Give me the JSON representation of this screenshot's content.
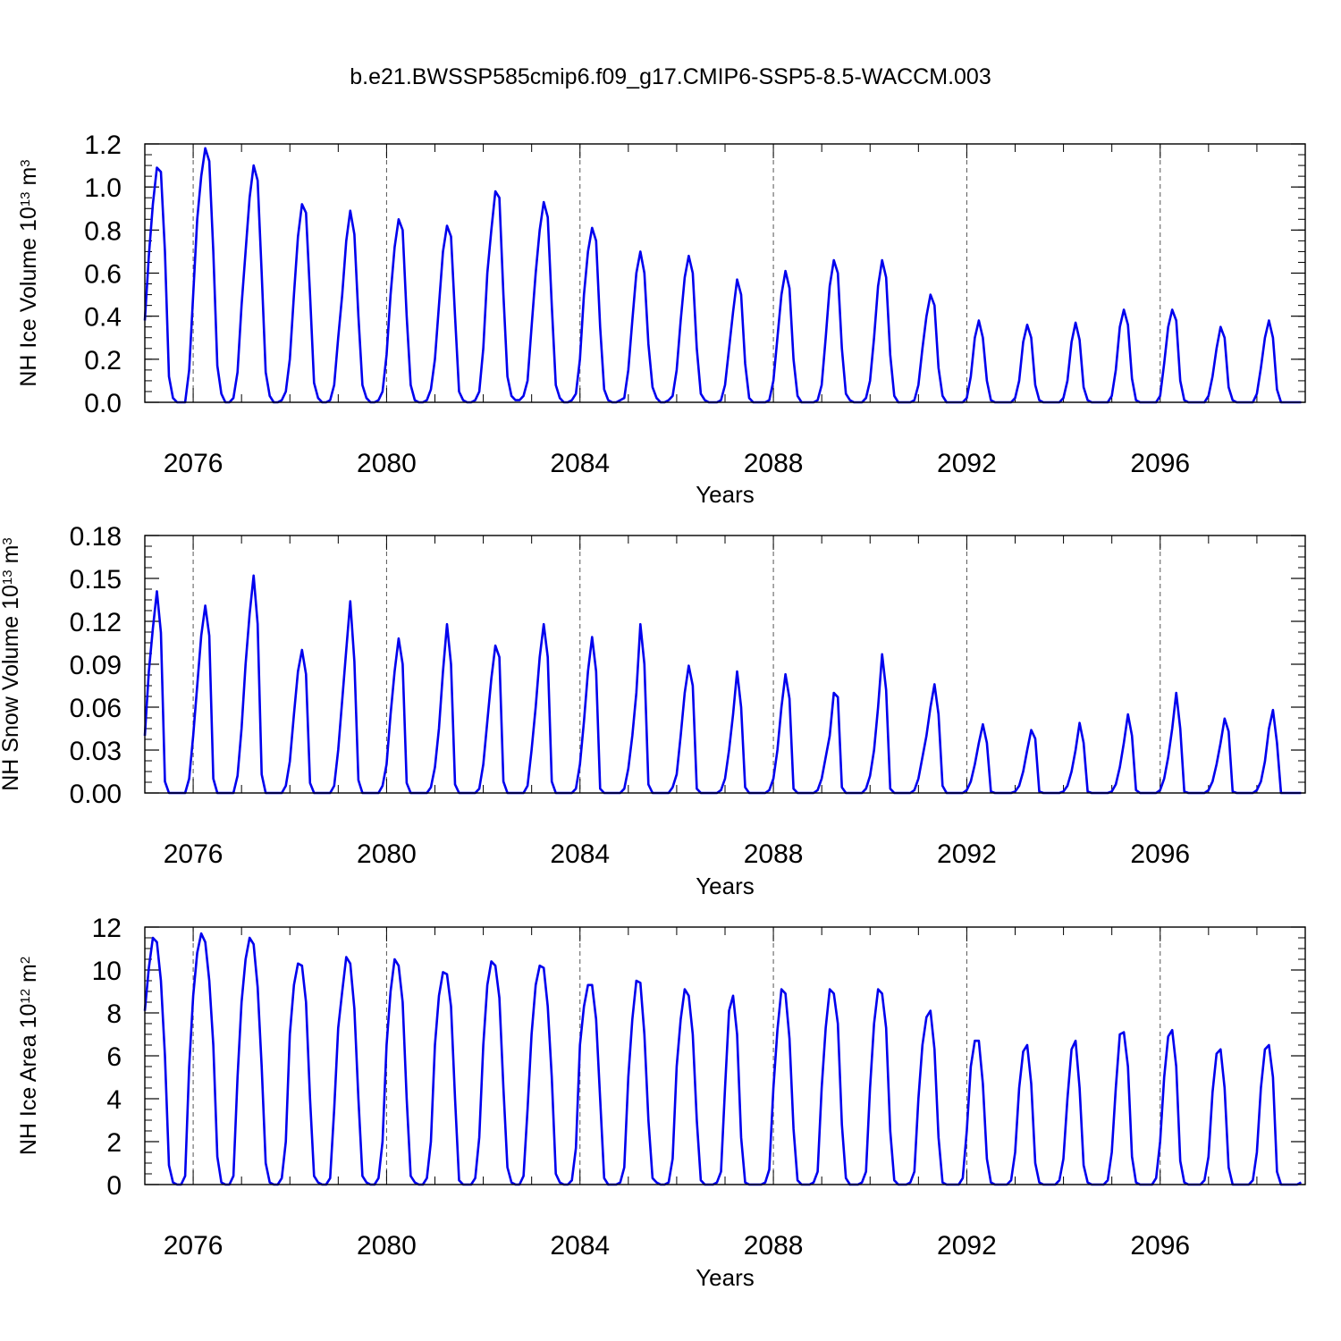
{
  "title": "b.e21.BWSSP585cmip6.f09_g17.CMIP6-SSP5-8.5-WACCM.003",
  "chart_data": [
    {
      "type": "line",
      "ylabel": {
        "main": "NH Ice Volume 10",
        "exp": "13",
        "unit": " m",
        "unit_exp": "3"
      },
      "xlabel": "Years",
      "xlim": [
        2075.0,
        2099.0
      ],
      "ylim": [
        0.0,
        1.2
      ],
      "yticks": [
        0.0,
        0.2,
        0.4,
        0.6,
        0.8,
        1.0,
        1.2
      ],
      "ytick_labels": [
        "0.0",
        "0.2",
        "0.4",
        "0.6",
        "0.8",
        "1.0",
        "1.2"
      ],
      "ygrid_minor": 0.05,
      "xticks": [
        2076,
        2080,
        2084,
        2088,
        2092,
        2096
      ],
      "xtick_labels": [
        "2076",
        "2080",
        "2084",
        "2088",
        "2092",
        "2096"
      ],
      "vgrid_dashed": [
        2076,
        2080,
        2084,
        2088,
        2092,
        2096
      ],
      "series_color": "#0000ee",
      "series": [
        {
          "name": "NH Ice Volume",
          "start": 2075.0,
          "step": 0.08333,
          "values": [
            0.38,
            0.68,
            0.92,
            1.09,
            1.07,
            0.7,
            0.12,
            0.02,
            0.0,
            0.0,
            0.0,
            0.15,
            0.5,
            0.85,
            1.05,
            1.18,
            1.12,
            0.7,
            0.17,
            0.04,
            0.0,
            0.0,
            0.02,
            0.14,
            0.45,
            0.7,
            0.95,
            1.1,
            1.03,
            0.6,
            0.14,
            0.03,
            0.0,
            0.0,
            0.01,
            0.05,
            0.2,
            0.5,
            0.77,
            0.92,
            0.88,
            0.5,
            0.09,
            0.02,
            0.0,
            0.0,
            0.01,
            0.08,
            0.3,
            0.5,
            0.75,
            0.89,
            0.78,
            0.4,
            0.08,
            0.02,
            0.0,
            0.0,
            0.01,
            0.05,
            0.22,
            0.5,
            0.72,
            0.85,
            0.8,
            0.4,
            0.08,
            0.01,
            0.0,
            0.0,
            0.01,
            0.06,
            0.2,
            0.45,
            0.7,
            0.82,
            0.77,
            0.4,
            0.05,
            0.01,
            0.0,
            0.0,
            0.01,
            0.05,
            0.25,
            0.6,
            0.8,
            0.98,
            0.95,
            0.5,
            0.12,
            0.03,
            0.01,
            0.01,
            0.03,
            0.1,
            0.35,
            0.6,
            0.8,
            0.93,
            0.86,
            0.45,
            0.08,
            0.02,
            0.0,
            0.0,
            0.01,
            0.04,
            0.2,
            0.5,
            0.7,
            0.81,
            0.75,
            0.35,
            0.06,
            0.01,
            0.0,
            0.0,
            0.01,
            0.02,
            0.15,
            0.38,
            0.6,
            0.7,
            0.6,
            0.27,
            0.07,
            0.02,
            0.0,
            0.0,
            0.01,
            0.03,
            0.15,
            0.38,
            0.58,
            0.68,
            0.6,
            0.25,
            0.04,
            0.01,
            0.0,
            0.0,
            0.0,
            0.01,
            0.08,
            0.25,
            0.42,
            0.57,
            0.5,
            0.18,
            0.02,
            0.0,
            0.0,
            0.0,
            0.0,
            0.01,
            0.1,
            0.3,
            0.5,
            0.61,
            0.53,
            0.2,
            0.03,
            0.0,
            0.0,
            0.0,
            0.0,
            0.01,
            0.08,
            0.3,
            0.54,
            0.66,
            0.6,
            0.25,
            0.04,
            0.01,
            0.0,
            0.0,
            0.0,
            0.02,
            0.1,
            0.3,
            0.54,
            0.66,
            0.58,
            0.22,
            0.03,
            0.0,
            0.0,
            0.0,
            0.0,
            0.01,
            0.08,
            0.25,
            0.4,
            0.5,
            0.45,
            0.16,
            0.03,
            0.0,
            0.0,
            0.0,
            0.0,
            0.0,
            0.02,
            0.12,
            0.3,
            0.38,
            0.3,
            0.1,
            0.01,
            0.0,
            0.0,
            0.0,
            0.0,
            0.0,
            0.02,
            0.1,
            0.28,
            0.36,
            0.3,
            0.08,
            0.01,
            0.0,
            0.0,
            0.0,
            0.0,
            0.0,
            0.02,
            0.1,
            0.28,
            0.37,
            0.29,
            0.07,
            0.01,
            0.0,
            0.0,
            0.0,
            0.0,
            0.0,
            0.03,
            0.15,
            0.35,
            0.43,
            0.36,
            0.11,
            0.01,
            0.0,
            0.0,
            0.0,
            0.0,
            0.0,
            0.03,
            0.18,
            0.35,
            0.43,
            0.38,
            0.1,
            0.01,
            0.0,
            0.0,
            0.0,
            0.0,
            0.0,
            0.03,
            0.12,
            0.25,
            0.35,
            0.3,
            0.07,
            0.01,
            0.0,
            0.0,
            0.0,
            0.0,
            0.0,
            0.04,
            0.16,
            0.3,
            0.38,
            0.3,
            0.06,
            0.0,
            0.0,
            0.0,
            0.0,
            0.0,
            0.0
          ]
        }
      ]
    },
    {
      "type": "line",
      "ylabel": {
        "main": "NH Snow Volume 10",
        "exp": "13",
        "unit": " m",
        "unit_exp": "3"
      },
      "xlabel": "Years",
      "xlim": [
        2075.0,
        2099.0
      ],
      "ylim": [
        0.0,
        0.18
      ],
      "yticks": [
        0.0,
        0.03,
        0.06,
        0.09,
        0.12,
        0.15,
        0.18
      ],
      "ytick_labels": [
        "0.00",
        "0.03",
        "0.06",
        "0.09",
        "0.12",
        "0.15",
        "0.18"
      ],
      "ygrid_minor": 0.0075,
      "xticks": [
        2076,
        2080,
        2084,
        2088,
        2092,
        2096
      ],
      "xtick_labels": [
        "2076",
        "2080",
        "2084",
        "2088",
        "2092",
        "2096"
      ],
      "vgrid_dashed": [
        2076,
        2080,
        2084,
        2088,
        2092,
        2096
      ],
      "series_color": "#0000ee",
      "series": [
        {
          "name": "NH Snow Volume",
          "start": 2075.0,
          "step": 0.08333,
          "values": [
            0.04,
            0.085,
            0.115,
            0.141,
            0.112,
            0.008,
            0.0,
            0.0,
            0.0,
            0.0,
            0.0,
            0.01,
            0.04,
            0.075,
            0.11,
            0.131,
            0.11,
            0.01,
            0.0,
            0.0,
            0.0,
            0.0,
            0.0,
            0.012,
            0.045,
            0.09,
            0.125,
            0.152,
            0.118,
            0.013,
            0.0,
            0.0,
            0.0,
            0.0,
            0.0,
            0.005,
            0.022,
            0.055,
            0.085,
            0.1,
            0.083,
            0.007,
            0.0,
            0.0,
            0.0,
            0.0,
            0.0,
            0.005,
            0.03,
            0.065,
            0.1,
            0.134,
            0.092,
            0.009,
            0.0,
            0.0,
            0.0,
            0.0,
            0.0,
            0.005,
            0.02,
            0.055,
            0.085,
            0.108,
            0.09,
            0.007,
            0.0,
            0.0,
            0.0,
            0.0,
            0.0,
            0.004,
            0.018,
            0.045,
            0.085,
            0.118,
            0.09,
            0.006,
            0.0,
            0.0,
            0.0,
            0.0,
            0.0,
            0.003,
            0.02,
            0.05,
            0.08,
            0.103,
            0.095,
            0.008,
            0.0,
            0.0,
            0.0,
            0.0,
            0.0,
            0.005,
            0.03,
            0.06,
            0.095,
            0.118,
            0.095,
            0.008,
            0.0,
            0.0,
            0.0,
            0.0,
            0.0,
            0.003,
            0.02,
            0.05,
            0.085,
            0.109,
            0.085,
            0.003,
            0.0,
            0.0,
            0.0,
            0.0,
            0.0,
            0.003,
            0.017,
            0.04,
            0.07,
            0.118,
            0.09,
            0.006,
            0.0,
            0.0,
            0.0,
            0.0,
            0.0,
            0.004,
            0.013,
            0.04,
            0.07,
            0.089,
            0.075,
            0.003,
            0.0,
            0.0,
            0.0,
            0.0,
            0.0,
            0.002,
            0.01,
            0.03,
            0.055,
            0.085,
            0.06,
            0.004,
            0.0,
            0.0,
            0.0,
            0.0,
            0.0,
            0.002,
            0.01,
            0.03,
            0.06,
            0.083,
            0.066,
            0.003,
            0.0,
            0.0,
            0.0,
            0.0,
            0.0,
            0.002,
            0.01,
            0.025,
            0.04,
            0.07,
            0.067,
            0.004,
            0.0,
            0.0,
            0.0,
            0.0,
            0.0,
            0.003,
            0.012,
            0.03,
            0.06,
            0.097,
            0.072,
            0.003,
            0.0,
            0.0,
            0.0,
            0.0,
            0.0,
            0.002,
            0.01,
            0.025,
            0.04,
            0.06,
            0.076,
            0.055,
            0.005,
            0.0,
            0.0,
            0.0,
            0.0,
            0.0,
            0.002,
            0.008,
            0.02,
            0.035,
            0.048,
            0.035,
            0.001,
            0.0,
            0.0,
            0.0,
            0.0,
            0.0,
            0.001,
            0.005,
            0.015,
            0.03,
            0.044,
            0.038,
            0.001,
            0.0,
            0.0,
            0.0,
            0.0,
            0.0,
            0.001,
            0.005,
            0.015,
            0.03,
            0.049,
            0.035,
            0.001,
            0.0,
            0.0,
            0.0,
            0.0,
            0.0,
            0.001,
            0.006,
            0.018,
            0.035,
            0.055,
            0.04,
            0.002,
            0.0,
            0.0,
            0.0,
            0.0,
            0.0,
            0.002,
            0.01,
            0.025,
            0.045,
            0.07,
            0.045,
            0.001,
            0.0,
            0.0,
            0.0,
            0.0,
            0.0,
            0.002,
            0.008,
            0.02,
            0.035,
            0.052,
            0.043,
            0.001,
            0.0,
            0.0,
            0.0,
            0.0,
            0.0,
            0.002,
            0.008,
            0.022,
            0.045,
            0.058,
            0.035,
            0.0,
            0.0,
            0.0,
            0.0,
            0.0,
            0.0
          ]
        }
      ]
    },
    {
      "type": "line",
      "ylabel": {
        "main": "NH Ice Area 10",
        "exp": "12",
        "unit": " m",
        "unit_exp": "2"
      },
      "xlabel": "Years",
      "xlim": [
        2075.0,
        2099.0
      ],
      "ylim": [
        0,
        12
      ],
      "yticks": [
        0,
        2,
        4,
        6,
        8,
        10,
        12
      ],
      "ytick_labels": [
        "0",
        "2",
        "4",
        "6",
        "8",
        "10",
        "12"
      ],
      "ygrid_minor": 0.5,
      "xticks": [
        2076,
        2080,
        2084,
        2088,
        2092,
        2096
      ],
      "xtick_labels": [
        "2076",
        "2080",
        "2084",
        "2088",
        "2092",
        "2096"
      ],
      "vgrid_dashed": [
        2076,
        2080,
        2084,
        2088,
        2092,
        2096
      ],
      "series_color": "#0000ee",
      "series": [
        {
          "name": "NH Ice Area",
          "start": 2075.0,
          "step": 0.08333,
          "values": [
            8.1,
            10.1,
            11.5,
            11.3,
            9.5,
            6.0,
            0.9,
            0.1,
            0.0,
            0.0,
            0.4,
            5.5,
            8.8,
            10.8,
            11.7,
            11.3,
            9.5,
            6.5,
            1.3,
            0.1,
            0.0,
            0.0,
            0.4,
            5.0,
            8.5,
            10.5,
            11.5,
            11.2,
            9.2,
            5.5,
            1.0,
            0.1,
            0.0,
            0.0,
            0.3,
            2.0,
            7.0,
            9.3,
            10.3,
            10.2,
            8.5,
            4.0,
            0.4,
            0.1,
            0.0,
            0.0,
            0.3,
            3.5,
            7.3,
            9.0,
            10.6,
            10.3,
            8.2,
            4.0,
            0.4,
            0.1,
            0.0,
            0.0,
            0.3,
            2.0,
            6.5,
            9.0,
            10.5,
            10.2,
            8.5,
            4.0,
            0.4,
            0.1,
            0.0,
            0.0,
            0.3,
            2.0,
            6.5,
            8.8,
            9.9,
            9.8,
            8.3,
            4.0,
            0.2,
            0.0,
            0.0,
            0.0,
            0.3,
            2.2,
            6.5,
            9.3,
            10.4,
            10.2,
            8.7,
            4.5,
            0.8,
            0.1,
            0.0,
            0.0,
            0.4,
            3.5,
            7.0,
            9.3,
            10.2,
            10.1,
            8.3,
            5.0,
            0.5,
            0.1,
            0.0,
            0.0,
            0.2,
            1.7,
            6.5,
            8.3,
            9.3,
            9.3,
            7.7,
            4.0,
            0.3,
            0.0,
            0.0,
            0.0,
            0.1,
            0.8,
            5.0,
            7.7,
            9.5,
            9.4,
            7.0,
            3.0,
            0.3,
            0.1,
            0.0,
            0.0,
            0.1,
            1.2,
            5.5,
            7.7,
            9.1,
            8.8,
            7.0,
            3.0,
            0.2,
            0.0,
            0.0,
            0.0,
            0.1,
            0.6,
            4.5,
            8.1,
            8.8,
            7.0,
            2.2,
            0.1,
            0.0,
            0.0,
            0.0,
            0.0,
            0.1,
            0.7,
            4.5,
            7.2,
            9.1,
            8.9,
            6.8,
            2.6,
            0.2,
            0.0,
            0.0,
            0.0,
            0.1,
            0.6,
            4.5,
            7.3,
            9.1,
            8.9,
            7.5,
            2.8,
            0.3,
            0.0,
            0.0,
            0.0,
            0.1,
            0.6,
            4.5,
            7.5,
            9.1,
            8.9,
            7.3,
            2.5,
            0.2,
            0.0,
            0.0,
            0.0,
            0.1,
            0.6,
            4.0,
            6.5,
            7.8,
            8.1,
            6.3,
            2.2,
            0.1,
            0.0,
            0.0,
            0.0,
            0.0,
            0.3,
            2.5,
            5.5,
            6.7,
            6.7,
            4.7,
            1.2,
            0.1,
            0.0,
            0.0,
            0.0,
            0.0,
            0.2,
            1.5,
            4.5,
            6.2,
            6.5,
            4.7,
            1.0,
            0.1,
            0.0,
            0.0,
            0.0,
            0.0,
            0.2,
            1.2,
            4.0,
            6.3,
            6.7,
            4.5,
            0.9,
            0.1,
            0.0,
            0.0,
            0.0,
            0.0,
            0.2,
            1.5,
            4.5,
            7.0,
            7.1,
            5.5,
            1.3,
            0.1,
            0.0,
            0.0,
            0.0,
            0.0,
            0.3,
            2.0,
            5.0,
            6.9,
            7.2,
            5.5,
            1.1,
            0.1,
            0.0,
            0.0,
            0.0,
            0.0,
            0.2,
            1.3,
            4.3,
            6.1,
            6.3,
            4.5,
            0.8,
            0.0,
            0.0,
            0.0,
            0.0,
            0.0,
            0.2,
            1.5,
            4.5,
            6.3,
            6.5,
            5.0,
            0.6,
            0.0,
            0.0,
            0.0,
            0.0,
            0.0,
            0.1
          ]
        }
      ]
    }
  ]
}
